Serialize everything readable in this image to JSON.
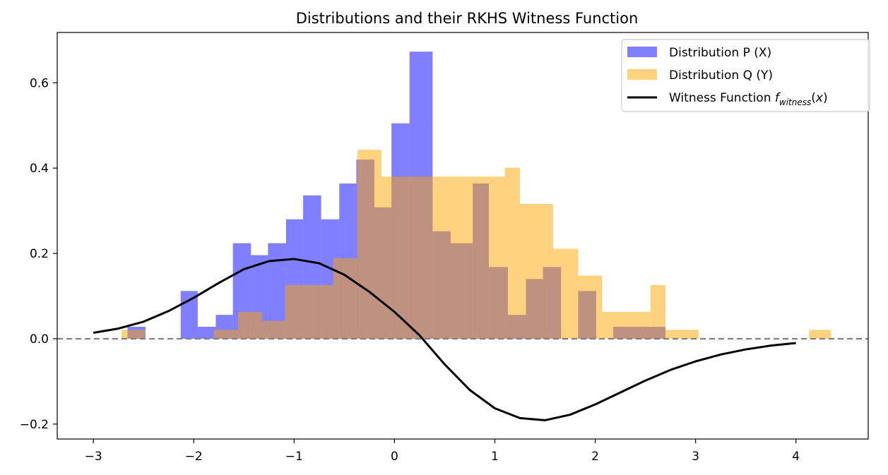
{
  "chart_data": {
    "type": "bar",
    "title": "Distributions and their RKHS Witness Function",
    "xlabel": "",
    "ylabel": "",
    "xlim": [
      -3.36,
      4.72
    ],
    "ylim": [
      -0.235,
      0.718
    ],
    "xticks": [
      -3,
      -2,
      -1,
      0,
      1,
      2,
      3,
      4
    ],
    "xtick_labels": [
      "−3",
      "−2",
      "−1",
      "0",
      "1",
      "2",
      "3",
      "4"
    ],
    "yticks": [
      -0.2,
      0.0,
      0.2,
      0.4,
      0.6
    ],
    "ytick_labels": [
      "−0.2",
      "0.0",
      "0.2",
      "0.4",
      "0.6"
    ],
    "grid": false,
    "legend_position": "top-right",
    "series": [
      {
        "name": "Distribution P (X)",
        "kind": "histogram",
        "color": "#0000ff",
        "alpha": 0.5,
        "bins": [
          [
            -2.66,
            -2.48,
            0.028
          ],
          [
            -2.13,
            -1.96,
            0.112
          ],
          [
            -1.96,
            -1.78,
            0.028
          ],
          [
            -1.78,
            -1.61,
            0.056
          ],
          [
            -1.61,
            -1.43,
            0.224
          ],
          [
            -1.43,
            -1.26,
            0.196
          ],
          [
            -1.26,
            -1.08,
            0.224
          ],
          [
            -1.08,
            -0.91,
            0.28
          ],
          [
            -0.91,
            -0.73,
            0.336
          ],
          [
            -0.73,
            -0.55,
            0.28
          ],
          [
            -0.55,
            -0.38,
            0.364
          ],
          [
            -0.38,
            -0.2,
            0.42
          ],
          [
            -0.2,
            -0.03,
            0.308
          ],
          [
            -0.03,
            0.15,
            0.505
          ],
          [
            0.15,
            0.38,
            0.673
          ],
          [
            0.38,
            0.56,
            0.252
          ],
          [
            0.56,
            0.78,
            0.224
          ],
          [
            0.78,
            0.94,
            0.364
          ],
          [
            0.94,
            1.13,
            0.168
          ],
          [
            1.13,
            1.31,
            0.056
          ],
          [
            1.31,
            1.48,
            0.14
          ],
          [
            1.48,
            1.66,
            0.168
          ],
          [
            1.83,
            2.01,
            0.112
          ],
          [
            2.18,
            2.7,
            0.028
          ]
        ]
      },
      {
        "name": "Distribution Q (Y)",
        "kind": "histogram",
        "color": "#ffa500",
        "alpha": 0.5,
        "bins": [
          [
            -2.72,
            -2.48,
            0.021
          ],
          [
            -1.8,
            -1.56,
            0.021
          ],
          [
            -1.56,
            -1.32,
            0.063
          ],
          [
            -1.32,
            -1.09,
            0.042
          ],
          [
            -1.09,
            -0.61,
            0.126
          ],
          [
            -0.61,
            -0.37,
            0.189
          ],
          [
            -0.37,
            -0.13,
            0.443
          ],
          [
            -0.13,
            0.38,
            0.38
          ],
          [
            0.38,
            1.1,
            0.38
          ],
          [
            1.1,
            1.25,
            0.401
          ],
          [
            1.25,
            1.58,
            0.316
          ],
          [
            1.58,
            1.83,
            0.211
          ],
          [
            1.83,
            2.07,
            0.148
          ],
          [
            2.07,
            2.55,
            0.063
          ],
          [
            2.55,
            2.7,
            0.126
          ],
          [
            2.7,
            3.03,
            0.021
          ],
          [
            4.13,
            4.35,
            0.021
          ]
        ]
      },
      {
        "name": "Witness Function f_witness(x)",
        "kind": "line",
        "color": "#000000",
        "x": [
          -3.0,
          -2.75,
          -2.5,
          -2.25,
          -2.0,
          -1.75,
          -1.5,
          -1.25,
          -1.0,
          -0.75,
          -0.5,
          -0.25,
          0.0,
          0.25,
          0.5,
          0.75,
          1.0,
          1.25,
          1.5,
          1.75,
          2.0,
          2.25,
          2.5,
          2.75,
          3.0,
          3.25,
          3.5,
          3.75,
          4.0
        ],
        "y": [
          0.014,
          0.024,
          0.04,
          0.065,
          0.096,
          0.131,
          0.163,
          0.182,
          0.187,
          0.177,
          0.15,
          0.11,
          0.063,
          0.008,
          -0.06,
          -0.12,
          -0.163,
          -0.186,
          -0.191,
          -0.178,
          -0.154,
          -0.126,
          -0.098,
          -0.073,
          -0.053,
          -0.037,
          -0.025,
          -0.016,
          -0.01
        ]
      }
    ],
    "reference_lines": [
      {
        "axis": "y",
        "value": 0.0,
        "style": "dashed",
        "color": "#808080"
      }
    ],
    "legend": [
      {
        "label": "Distribution P (X)",
        "color": "#8080ff",
        "marker": "patch"
      },
      {
        "label": "Distribution Q (Y)",
        "color": "#ffd280",
        "marker": "patch"
      },
      {
        "label": "Witness Function ",
        "label_math": "f",
        "label_sub": "witness",
        "label_tail": "(x)",
        "color": "#000000",
        "marker": "line"
      }
    ]
  }
}
